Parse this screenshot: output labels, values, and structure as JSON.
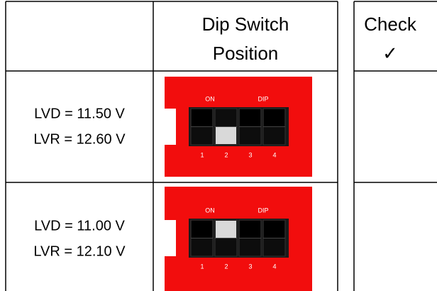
{
  "table": {
    "header": {
      "position": [
        "Dip Switch",
        "Position"
      ]
    },
    "rows": [
      {
        "labels": [
          "LVD = 11.50 V",
          "LVR = 12.60 V"
        ],
        "dip": {
          "on": "ON",
          "dip": "DIP",
          "numbers": [
            "1",
            "2",
            "3",
            "4"
          ]
        }
      },
      {
        "labels": [
          "LVD = 11.00 V",
          "LVR = 12.10 V"
        ],
        "dip": {
          "on": "ON",
          "dip": "DIP",
          "numbers": [
            "1",
            "2",
            "3",
            "4"
          ]
        }
      }
    ]
  },
  "check_table": {
    "header": [
      "Check",
      "✓"
    ]
  }
}
